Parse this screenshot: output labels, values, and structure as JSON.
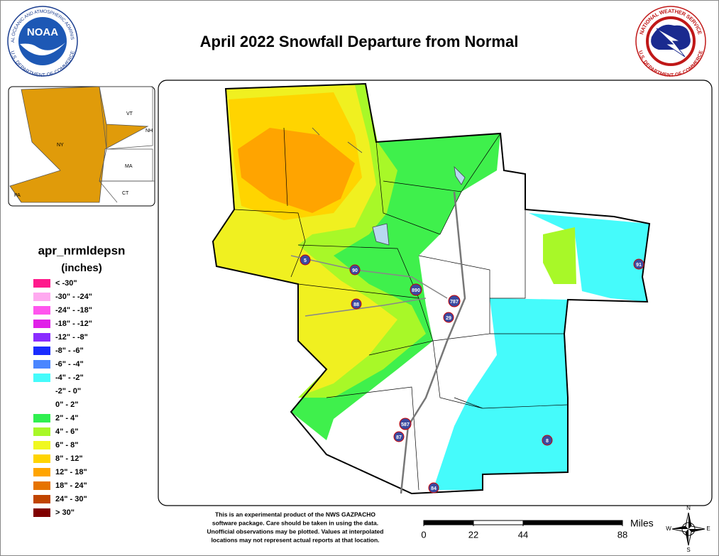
{
  "header": {
    "title": "April 2022 Snowfall Departure from Normal",
    "noaa_logo": {
      "name": "NOAA",
      "ring_top": "NATIONAL OCEANIC AND ATMOSPHERIC ADMINISTRATION",
      "ring_bottom": "U.S. DEPARTMENT OF COMMERCE"
    },
    "nws_logo": {
      "ring_top": "NATIONAL WEATHER SERVICE",
      "ring_bottom": "U.S. DEPARTMENT OF COMMERCE"
    }
  },
  "inset": {
    "labels": [
      "VT",
      "NH",
      "NY",
      "MA",
      "CT",
      "PA"
    ]
  },
  "legend": {
    "title": "apr_nrmldepsn",
    "units": "(inches)",
    "entries": [
      {
        "label": "< -30\"",
        "color": "#ff1a8c"
      },
      {
        "label": "-30\" - -24\"",
        "color": "#ffaaf0"
      },
      {
        "label": "-24\" - -18\"",
        "color": "#ff55ee"
      },
      {
        "label": "-18\" - -12\"",
        "color": "#e020e8"
      },
      {
        "label": "-12\" - -8\"",
        "color": "#8a2cff"
      },
      {
        "label": "-8\" - -6\"",
        "color": "#1a2cff"
      },
      {
        "label": "-6\" - -4\"",
        "color": "#4a86ff"
      },
      {
        "label": "-4\" - -2\"",
        "color": "#45fbfb"
      },
      {
        "label": "-2\" - 0\"",
        "color": "#ffffff"
      },
      {
        "label": "0\" - 2\"",
        "color": "#ffffff"
      },
      {
        "label": "2\" - 4\"",
        "color": "#30f050"
      },
      {
        "label": "4\" - 6\"",
        "color": "#a8f828"
      },
      {
        "label": "6\" - 8\"",
        "color": "#f0f820"
      },
      {
        "label": "8\" - 12\"",
        "color": "#ffd400"
      },
      {
        "label": "12\" - 18\"",
        "color": "#ffa400"
      },
      {
        "label": "18\" - 24\"",
        "color": "#e67300"
      },
      {
        "label": "24\" - 30\"",
        "color": "#c04400"
      },
      {
        "label": "> 30\"",
        "color": "#800000"
      }
    ]
  },
  "map": {
    "interstates": [
      "5",
      "90",
      "88",
      "890",
      "787",
      "29",
      "587",
      "87",
      "91",
      "8",
      "84"
    ]
  },
  "disclaimer": [
    "This is an experimental product of the NWS GAZPACHO",
    "software package. Care should be taken in using the data.",
    "Unofficial observations may be plotted. Values at interpolated",
    "locations may not represent actual reports at that location."
  ],
  "scale_bar": {
    "ticks": [
      0,
      22,
      44,
      88
    ],
    "unit": "Miles"
  },
  "compass": {
    "north": "N",
    "east": "E",
    "south": "S",
    "west": "W"
  }
}
